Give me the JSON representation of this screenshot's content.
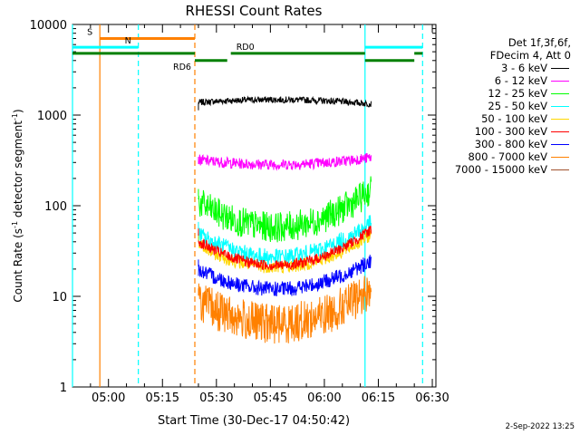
{
  "chart_data": {
    "type": "line",
    "title": "RHESSI Count Rates",
    "xlabel": "Start Time (30-Dec-17 04:50:42)",
    "ylabel_main": "Count Rate (s",
    "ylabel_sup1": "-1",
    "ylabel_mid": " detector segment",
    "ylabel_sup2": "-1",
    "ylabel_end": ")",
    "x_range_minutes": [
      290,
      391
    ],
    "x_ticks": [
      "05:00",
      "05:15",
      "05:30",
      "05:45",
      "06:00",
      "06:15",
      "06:30"
    ],
    "y_scale": "log",
    "y_range": [
      1,
      10000
    ],
    "y_ticks": [
      "1",
      "10",
      "100",
      "1000",
      "10000"
    ],
    "legend": {
      "header": [
        "Det 1f,3f,6f,",
        "FDecim 4, Att 0"
      ],
      "position": "right",
      "entries": [
        {
          "label": "3 - 6 keV",
          "color": "#000000"
        },
        {
          "label": "6 - 12 keV",
          "color": "#ff00ff"
        },
        {
          "label": "12 - 25 keV",
          "color": "#00ff00"
        },
        {
          "label": "25 - 50 keV",
          "color": "#00ffff"
        },
        {
          "label": "50 - 100 keV",
          "color": "#ffd700"
        },
        {
          "label": "100 - 300 keV",
          "color": "#ff0000"
        },
        {
          "label": "300 - 800 keV",
          "color": "#0000ff"
        },
        {
          "label": "800 - 7000 keV",
          "color": "#ff8000"
        },
        {
          "label": "7000 - 15000 keV",
          "color": "#a0522d"
        }
      ]
    },
    "series": [
      {
        "name": "3 - 6 keV",
        "color": "#000000",
        "start": 325,
        "end": 373,
        "edge": 1330,
        "mid": 1480,
        "noise": 0.03
      },
      {
        "name": "6 - 12 keV",
        "color": "#ff00ff",
        "start": 325,
        "end": 373,
        "edge": 340,
        "mid": 285,
        "noise": 0.05
      },
      {
        "name": "12 - 25 keV",
        "color": "#00ff00",
        "start": 325,
        "end": 373,
        "edge": 150,
        "mid": 58,
        "noise": 0.14
      },
      {
        "name": "25 - 50 keV",
        "color": "#00ffff",
        "start": 325,
        "end": 373,
        "edge": 65,
        "mid": 27,
        "noise": 0.08
      },
      {
        "name": "50 - 100 keV",
        "color": "#ffd700",
        "start": 325,
        "end": 373,
        "edge": 48,
        "mid": 21,
        "noise": 0.06
      },
      {
        "name": "100 - 300 keV",
        "color": "#ff0000",
        "start": 325,
        "end": 373,
        "edge": 55,
        "mid": 22,
        "noise": 0.05
      },
      {
        "name": "300 - 800 keV",
        "color": "#0000ff",
        "start": 325,
        "end": 373,
        "edge": 25,
        "mid": 12,
        "noise": 0.07
      },
      {
        "name": "800 - 7000 keV",
        "color": "#ff8000",
        "start": 325,
        "end": 373,
        "edge": 12,
        "mid": 5,
        "noise": 0.14
      }
    ],
    "attenuator_segments": [
      {
        "label": "S",
        "color": "#ff8000",
        "x_start": 297.6,
        "x_end": 324.0,
        "y": 7000
      },
      {
        "label": "N",
        "color": "#00ffff",
        "x_start": 290.0,
        "x_end": 308.3,
        "y": 5600
      },
      {
        "label": "",
        "color": "#00ffff",
        "x_start": 371.3,
        "x_end": 387.3,
        "y": 5600
      },
      {
        "label": "",
        "color": "#008000",
        "x_start": 290.0,
        "x_end": 324.0,
        "y": 4800
      },
      {
        "label": "RD6",
        "color": "#008000",
        "x_start": 324.0,
        "x_end": 333.0,
        "y": 4000
      },
      {
        "label": "RD0",
        "color": "#008000",
        "x_start": 334.0,
        "x_end": 371.3,
        "y": 4800
      },
      {
        "label": "",
        "color": "#008000",
        "x_start": 371.3,
        "x_end": 385.0,
        "y": 4000
      },
      {
        "label": "",
        "color": "#008000",
        "x_start": 385.0,
        "x_end": 387.3,
        "y": 4800
      }
    ],
    "vlines": [
      {
        "x": 290.0,
        "color": "#00ffff",
        "dash": false
      },
      {
        "x": 297.6,
        "color": "#ff8000",
        "dash": false
      },
      {
        "x": 308.3,
        "color": "#00ffff",
        "dash": true
      },
      {
        "x": 324.0,
        "color": "#ff8000",
        "dash": true
      },
      {
        "x": 371.3,
        "color": "#00ffff",
        "dash": false
      },
      {
        "x": 387.3,
        "color": "#00ffff",
        "dash": true
      }
    ]
  },
  "footer": "2-Sep-2022 13:25"
}
